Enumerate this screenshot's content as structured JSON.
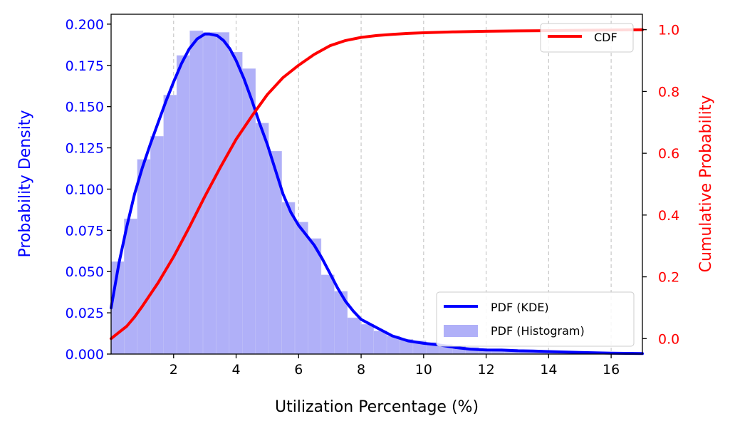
{
  "chart_data": {
    "type": "line",
    "xlabel": "Utilization Percentage (%)",
    "ylabel_left": "Probability Density",
    "ylabel_right": "Cumulative Probability",
    "xlim": [
      0,
      17
    ],
    "ylim_left": [
      0,
      0.206
    ],
    "ylim_right": [
      -0.05,
      1.05
    ],
    "x_ticks": [
      2,
      4,
      6,
      8,
      10,
      12,
      14,
      16
    ],
    "y_left_ticks": [
      "0.000",
      "0.025",
      "0.050",
      "0.075",
      "0.100",
      "0.125",
      "0.150",
      "0.175",
      "0.200"
    ],
    "y_right_ticks": [
      "0.0",
      "0.2",
      "0.4",
      "0.6",
      "0.8",
      "1.0"
    ],
    "grid": "x-dashed",
    "colors": {
      "pdf": "#0000ff",
      "cdf": "#ff0000",
      "hist": "#b0b0f8"
    },
    "legend_top": {
      "position": "top-right",
      "entries": [
        "CDF"
      ]
    },
    "legend_bottom": {
      "position": "bottom-right",
      "entries": [
        "PDF (KDE)",
        "PDF (Histogram)"
      ]
    },
    "histogram": {
      "bin_width": 0.42,
      "bins_left": [
        0.0,
        0.42,
        0.84,
        1.26,
        1.68,
        2.1,
        2.52,
        2.94,
        3.36,
        3.78,
        4.2,
        4.62,
        5.04,
        5.46,
        5.88,
        6.3,
        6.72,
        7.14,
        7.56,
        7.98,
        8.4,
        8.82,
        9.24,
        9.66,
        10.08,
        10.5,
        10.92,
        11.34,
        11.76,
        12.18,
        12.6,
        13.02,
        13.44,
        13.86,
        14.28,
        14.7,
        15.12,
        15.54,
        15.96,
        16.38
      ],
      "heights": [
        0.056,
        0.082,
        0.118,
        0.132,
        0.157,
        0.181,
        0.196,
        0.195,
        0.195,
        0.183,
        0.173,
        0.14,
        0.123,
        0.092,
        0.08,
        0.07,
        0.048,
        0.038,
        0.022,
        0.018,
        0.014,
        0.011,
        0.009,
        0.008,
        0.007,
        0.006,
        0.005,
        0.004,
        0.003,
        0.003,
        0.003,
        0.002,
        0.002,
        0.002,
        0.001,
        0.001,
        0.001,
        0.001,
        0.001,
        0.001
      ]
    },
    "series": [
      {
        "name": "PDF (KDE)",
        "axis": "left",
        "x": [
          0,
          0.25,
          0.5,
          0.75,
          1.0,
          1.25,
          1.5,
          1.75,
          2.0,
          2.25,
          2.5,
          2.75,
          3.0,
          3.15,
          3.4,
          3.6,
          3.8,
          4.0,
          4.25,
          4.5,
          4.75,
          5.0,
          5.25,
          5.5,
          5.75,
          6.0,
          6.25,
          6.5,
          6.75,
          7.0,
          7.25,
          7.5,
          7.75,
          8.0,
          8.5,
          9.0,
          9.5,
          10.0,
          10.5,
          11.0,
          11.5,
          12.0,
          12.5,
          13.0,
          13.5,
          14.0,
          15.0,
          16.0,
          17.0
        ],
        "y": [
          0.028,
          0.055,
          0.077,
          0.097,
          0.113,
          0.127,
          0.14,
          0.153,
          0.165,
          0.176,
          0.185,
          0.191,
          0.194,
          0.194,
          0.193,
          0.19,
          0.185,
          0.178,
          0.167,
          0.154,
          0.14,
          0.127,
          0.112,
          0.097,
          0.086,
          0.078,
          0.072,
          0.066,
          0.058,
          0.049,
          0.04,
          0.032,
          0.026,
          0.021,
          0.016,
          0.011,
          0.008,
          0.0065,
          0.0055,
          0.004,
          0.003,
          0.0025,
          0.0024,
          0.002,
          0.0018,
          0.0015,
          0.001,
          0.0005,
          0.0003
        ]
      },
      {
        "name": "CDF",
        "axis": "right",
        "x": [
          0,
          0.25,
          0.5,
          0.75,
          1.0,
          1.5,
          2.0,
          2.5,
          3.0,
          3.5,
          4.0,
          4.5,
          5.0,
          5.5,
          6.0,
          6.5,
          7.0,
          7.5,
          8.0,
          8.5,
          9.0,
          9.5,
          10.0,
          11.0,
          12.0,
          13.0,
          14.0,
          15.0,
          16.0,
          17.0
        ],
        "y": [
          0.0,
          0.02,
          0.04,
          0.07,
          0.105,
          0.18,
          0.265,
          0.36,
          0.46,
          0.555,
          0.645,
          0.72,
          0.79,
          0.845,
          0.885,
          0.92,
          0.948,
          0.965,
          0.975,
          0.981,
          0.985,
          0.988,
          0.99,
          0.993,
          0.995,
          0.996,
          0.997,
          0.998,
          0.999,
          1.0
        ]
      }
    ]
  }
}
